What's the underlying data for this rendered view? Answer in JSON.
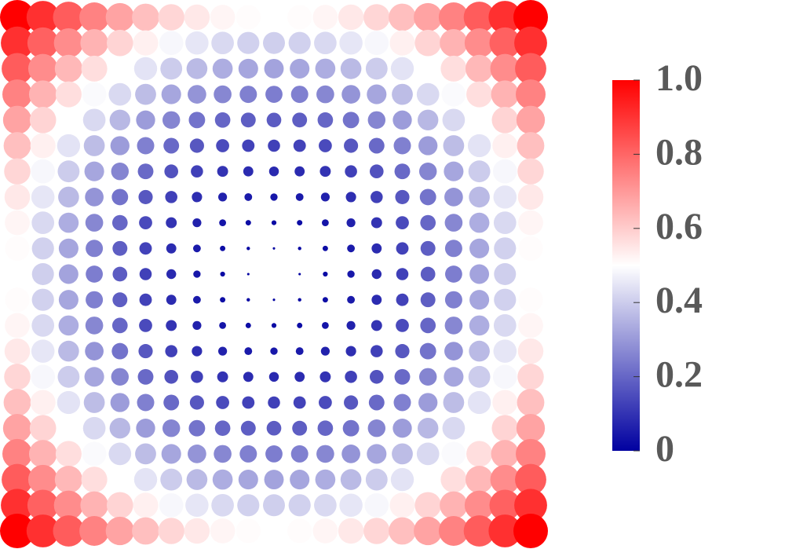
{
  "chart_data": {
    "type": "dot-matrix",
    "colorscale": [
      "#0000a0",
      "#ffffff",
      "#ff0000"
    ],
    "clim": [
      0,
      1
    ],
    "cticks": [
      0,
      0.2,
      0.4,
      0.6,
      0.8,
      {
        "value": 1,
        "label": "1.0"
      }
    ],
    "values": [
      [
        1,
        0.905,
        0.82,
        0.745,
        0.68,
        0.625,
        0.58,
        0.545,
        0.52,
        0.505,
        0.5,
        0.505,
        0.52,
        0.545,
        0.58,
        0.625,
        0.68,
        0.745,
        0.82,
        0.905,
        1
      ],
      [
        0.905,
        0.81,
        0.725,
        0.65,
        0.585,
        0.53,
        0.485,
        0.45,
        0.425,
        0.41,
        0.405,
        0.41,
        0.425,
        0.45,
        0.485,
        0.53,
        0.585,
        0.65,
        0.725,
        0.81,
        0.905
      ],
      [
        0.82,
        0.725,
        0.64,
        0.565,
        0.5,
        0.445,
        0.4,
        0.365,
        0.34,
        0.325,
        0.32,
        0.325,
        0.34,
        0.365,
        0.4,
        0.445,
        0.5,
        0.565,
        0.64,
        0.725,
        0.82
      ],
      [
        0.745,
        0.65,
        0.565,
        0.49,
        0.425,
        0.37,
        0.325,
        0.29,
        0.265,
        0.25,
        0.245,
        0.25,
        0.265,
        0.29,
        0.325,
        0.37,
        0.425,
        0.49,
        0.565,
        0.65,
        0.745
      ],
      [
        0.68,
        0.585,
        0.5,
        0.425,
        0.36,
        0.305,
        0.26,
        0.225,
        0.2,
        0.185,
        0.18,
        0.185,
        0.2,
        0.225,
        0.26,
        0.305,
        0.36,
        0.425,
        0.5,
        0.585,
        0.68
      ],
      [
        0.625,
        0.53,
        0.445,
        0.37,
        0.305,
        0.25,
        0.205,
        0.17,
        0.145,
        0.13,
        0.125,
        0.13,
        0.145,
        0.17,
        0.205,
        0.25,
        0.305,
        0.37,
        0.445,
        0.53,
        0.625
      ],
      [
        0.58,
        0.485,
        0.4,
        0.325,
        0.26,
        0.205,
        0.16,
        0.125,
        0.1,
        0.085,
        0.08,
        0.085,
        0.1,
        0.125,
        0.16,
        0.205,
        0.26,
        0.325,
        0.4,
        0.485,
        0.58
      ],
      [
        0.545,
        0.45,
        0.365,
        0.29,
        0.225,
        0.17,
        0.125,
        0.09,
        0.065,
        0.05,
        0.045,
        0.05,
        0.065,
        0.09,
        0.125,
        0.17,
        0.225,
        0.29,
        0.365,
        0.45,
        0.545
      ],
      [
        0.52,
        0.425,
        0.34,
        0.265,
        0.2,
        0.145,
        0.1,
        0.065,
        0.04,
        0.025,
        0.02,
        0.025,
        0.04,
        0.065,
        0.1,
        0.145,
        0.2,
        0.265,
        0.34,
        0.425,
        0.52
      ],
      [
        0.505,
        0.41,
        0.325,
        0.25,
        0.185,
        0.13,
        0.085,
        0.05,
        0.025,
        0.01,
        0.005,
        0.01,
        0.025,
        0.05,
        0.085,
        0.13,
        0.185,
        0.25,
        0.325,
        0.41,
        0.505
      ],
      [
        0.5,
        0.405,
        0.32,
        0.245,
        0.18,
        0.125,
        0.08,
        0.045,
        0.02,
        0.005,
        0,
        0.005,
        0.02,
        0.045,
        0.08,
        0.125,
        0.18,
        0.245,
        0.32,
        0.405,
        0.5
      ],
      [
        0.505,
        0.41,
        0.325,
        0.25,
        0.185,
        0.13,
        0.085,
        0.05,
        0.025,
        0.01,
        0.005,
        0.01,
        0.025,
        0.05,
        0.085,
        0.13,
        0.185,
        0.25,
        0.325,
        0.41,
        0.505
      ],
      [
        0.52,
        0.425,
        0.34,
        0.265,
        0.2,
        0.145,
        0.1,
        0.065,
        0.04,
        0.025,
        0.02,
        0.025,
        0.04,
        0.065,
        0.1,
        0.145,
        0.2,
        0.265,
        0.34,
        0.425,
        0.52
      ],
      [
        0.545,
        0.45,
        0.365,
        0.29,
        0.225,
        0.17,
        0.125,
        0.09,
        0.065,
        0.05,
        0.045,
        0.05,
        0.065,
        0.09,
        0.125,
        0.17,
        0.225,
        0.29,
        0.365,
        0.45,
        0.545
      ],
      [
        0.58,
        0.485,
        0.4,
        0.325,
        0.26,
        0.205,
        0.16,
        0.125,
        0.1,
        0.085,
        0.08,
        0.085,
        0.1,
        0.125,
        0.16,
        0.205,
        0.26,
        0.325,
        0.4,
        0.485,
        0.58
      ],
      [
        0.625,
        0.53,
        0.445,
        0.37,
        0.305,
        0.25,
        0.205,
        0.17,
        0.145,
        0.13,
        0.125,
        0.13,
        0.145,
        0.17,
        0.205,
        0.25,
        0.305,
        0.37,
        0.445,
        0.53,
        0.625
      ],
      [
        0.68,
        0.585,
        0.5,
        0.425,
        0.36,
        0.305,
        0.26,
        0.225,
        0.2,
        0.185,
        0.18,
        0.185,
        0.2,
        0.225,
        0.26,
        0.305,
        0.36,
        0.425,
        0.5,
        0.585,
        0.68
      ],
      [
        0.745,
        0.65,
        0.565,
        0.49,
        0.425,
        0.37,
        0.325,
        0.29,
        0.265,
        0.25,
        0.245,
        0.25,
        0.265,
        0.29,
        0.325,
        0.37,
        0.425,
        0.49,
        0.565,
        0.65,
        0.745
      ],
      [
        0.82,
        0.725,
        0.64,
        0.565,
        0.5,
        0.445,
        0.4,
        0.365,
        0.34,
        0.325,
        0.32,
        0.325,
        0.34,
        0.365,
        0.4,
        0.445,
        0.5,
        0.565,
        0.64,
        0.725,
        0.82
      ],
      [
        0.905,
        0.81,
        0.725,
        0.65,
        0.585,
        0.53,
        0.485,
        0.45,
        0.425,
        0.41,
        0.405,
        0.41,
        0.425,
        0.45,
        0.485,
        0.53,
        0.585,
        0.65,
        0.725,
        0.81,
        0.905
      ],
      [
        1,
        0.905,
        0.82,
        0.745,
        0.68,
        0.625,
        0.58,
        0.545,
        0.52,
        0.505,
        0.5,
        0.505,
        0.52,
        0.545,
        0.58,
        0.625,
        0.68,
        0.745,
        0.82,
        0.905,
        1
      ]
    ]
  }
}
